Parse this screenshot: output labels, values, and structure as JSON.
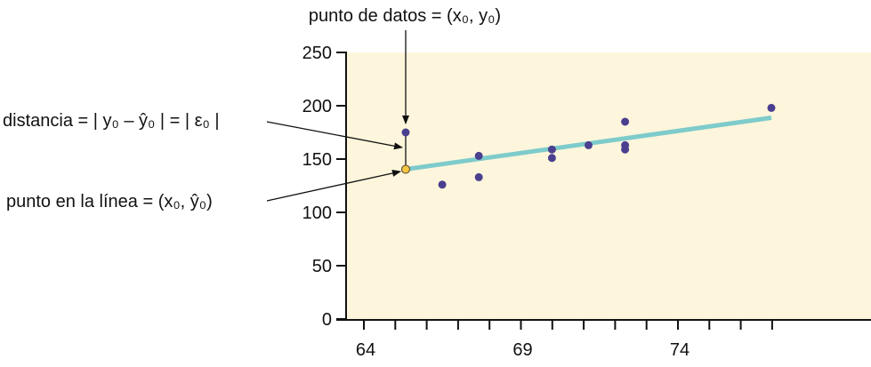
{
  "chart_data": {
    "type": "scatter",
    "title": "",
    "xlabel": "",
    "ylabel": "",
    "xlim": [
      63.8,
      80.5
    ],
    "ylim": [
      0,
      250
    ],
    "grid": false,
    "x_tick_labels": [
      "64",
      "69",
      "74"
    ],
    "x_minor_ticks": [
      64,
      65,
      66,
      67,
      68,
      69,
      70,
      71,
      72,
      73,
      74,
      75,
      76,
      77
    ],
    "y_tick_labels": [
      "0",
      "50",
      "100",
      "150",
      "200",
      "250"
    ],
    "y_ticks": [
      0,
      50,
      100,
      150,
      200,
      250
    ],
    "points": [
      {
        "x": 65,
        "y": 175
      },
      {
        "x": 66,
        "y": 126
      },
      {
        "x": 67,
        "y": 133
      },
      {
        "x": 67,
        "y": 153
      },
      {
        "x": 69,
        "y": 151
      },
      {
        "x": 69,
        "y": 159
      },
      {
        "x": 70,
        "y": 163
      },
      {
        "x": 71,
        "y": 185
      },
      {
        "x": 71,
        "y": 163
      },
      {
        "x": 71,
        "y": 159
      },
      {
        "x": 75,
        "y": 198
      }
    ],
    "regression_line": {
      "intercept": -173.51,
      "slope": 4.83,
      "x_range": [
        65,
        75
      ]
    },
    "highlighted_point": {
      "x": 65,
      "y": 140.4
    },
    "colors": {
      "background": "#fdf6dc",
      "points": "#4b3f8f",
      "line": "#7ecbcb",
      "highlight": "#f5c842"
    },
    "annotations": {
      "data_point": "punto de datos = (x₀, y₀)",
      "distance": "distancia = | y₀ – ŷ₀ | = | ε₀ |",
      "line_point": "punto en la línea = (x₀, ŷ₀)"
    }
  }
}
